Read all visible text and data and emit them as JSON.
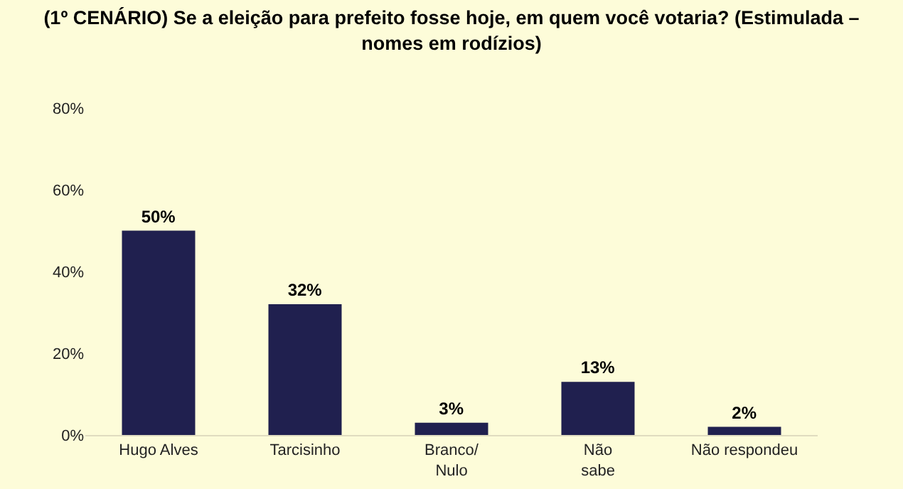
{
  "chart_data": {
    "type": "bar",
    "title": "(1º CENÁRIO) Se a eleição para prefeito fosse hoje, em quem você votaria? (Estimulada –\nnomes em rodízios)",
    "categories": [
      "Hugo Alves",
      "Tarcisinho",
      "Branco/\nNulo",
      "Não\nsabe",
      "Não respondeu"
    ],
    "values": [
      50,
      32,
      3,
      13,
      2
    ],
    "value_labels": [
      "50%",
      "32%",
      "3%",
      "13%",
      "2%"
    ],
    "color": "#20204f",
    "ylim": [
      0,
      80
    ],
    "yticks": [
      {
        "value": 0,
        "label": "0%"
      },
      {
        "value": 20,
        "label": "20%"
      },
      {
        "value": 40,
        "label": "40%"
      },
      {
        "value": 60,
        "label": "60%"
      },
      {
        "value": 80,
        "label": "80%"
      }
    ],
    "grid": false,
    "legend": false
  }
}
